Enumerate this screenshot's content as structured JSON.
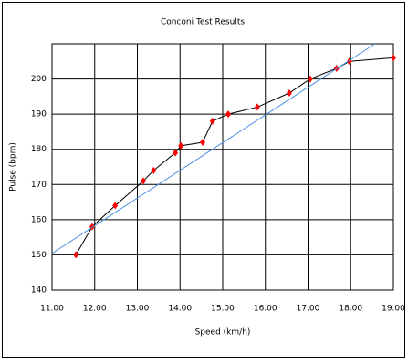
{
  "chart_data": {
    "type": "line",
    "title": "Conconi Test Results",
    "x_label": "Speed (km/h)",
    "y_label": "Pulse (bpm)",
    "xlim": [
      11,
      19
    ],
    "ylim": [
      140,
      210
    ],
    "xticks": [
      {
        "value": 11,
        "label": "11.00"
      },
      {
        "value": 12,
        "label": "12.00"
      },
      {
        "value": 13,
        "label": "13.00"
      },
      {
        "value": 14,
        "label": "14.00"
      },
      {
        "value": 15,
        "label": "15.00"
      },
      {
        "value": 16,
        "label": "16.00"
      },
      {
        "value": 17,
        "label": "17.00"
      },
      {
        "value": 18,
        "label": "18.00"
      },
      {
        "value": 19,
        "label": "19.00"
      }
    ],
    "yticks": [
      140,
      150,
      160,
      170,
      180,
      190,
      200
    ],
    "grid": true,
    "series": [
      {
        "color": "#000000",
        "marker_color": "#ff0000",
        "markers": true,
        "x": [
          11.56,
          11.94,
          12.48,
          13.14,
          13.38,
          13.89,
          14.02,
          14.53,
          14.76,
          15.13,
          15.81,
          16.56,
          17.05,
          17.67,
          17.97,
          19.0
        ],
        "values": [
          150,
          158,
          164,
          171,
          174,
          179,
          181,
          182,
          188,
          190,
          192,
          196,
          200,
          203,
          205,
          206
        ]
      },
      {
        "color": "#4a90e2",
        "markers": false,
        "x": [
          11.0,
          18.57
        ],
        "values": [
          150.4,
          210
        ]
      }
    ]
  }
}
